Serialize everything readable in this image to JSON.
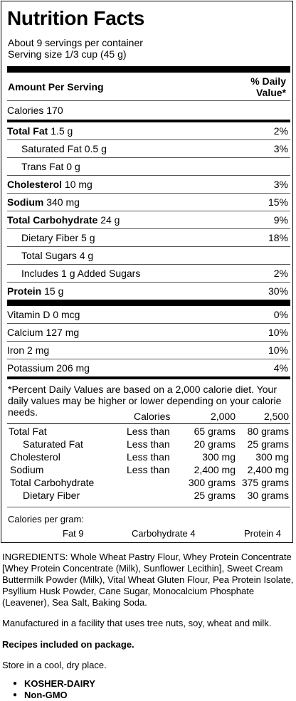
{
  "label": {
    "title": "Nutrition Facts",
    "servings": "About 9 servings per container",
    "serving_size": "Serving size 1/3 cup (45 g)",
    "amount_header": "Amount Per Serving",
    "dv_header_1": "% Daily",
    "dv_header_2": "Value*",
    "calories": "Calories 170",
    "rows": [
      {
        "name": "Total Fat",
        "amount": "1.5 g",
        "dv": "2%"
      },
      {
        "name": "Saturated Fat 0.5 g",
        "amount": "",
        "dv": "3%"
      },
      {
        "name": "Trans Fat 0 g",
        "amount": "",
        "dv": ""
      },
      {
        "name": "Cholesterol",
        "amount": "10 mg",
        "dv": "3%"
      },
      {
        "name": "Sodium",
        "amount": "340 mg",
        "dv": "15%"
      },
      {
        "name": "Total Carbohydrate",
        "amount": "24 g",
        "dv": "9%"
      },
      {
        "name": "Dietary Fiber 5 g",
        "amount": "",
        "dv": "18%"
      },
      {
        "name": "Total Sugars 4 g",
        "amount": "",
        "dv": ""
      },
      {
        "name": "Includes 1 g Added Sugars",
        "amount": "",
        "dv": "2%"
      },
      {
        "name": "Protein",
        "amount": "15 g",
        "dv": "30%"
      }
    ],
    "micros": [
      {
        "name": "Vitamin D 0 mcg",
        "dv": "0%"
      },
      {
        "name": "Calcium 127 mg",
        "dv": "10%"
      },
      {
        "name": "Iron 2 mg",
        "dv": "10%"
      },
      {
        "name": "Potassium 206 mg",
        "dv": "4%"
      }
    ],
    "footnote": "*Percent Daily Values are based on a 2,000 calorie diet. Your daily values may be higher or lower depending on your calorie needs.",
    "guide": {
      "head": [
        "Calories",
        "2,000",
        "2,500"
      ],
      "rows": [
        [
          "Total Fat",
          "Less than",
          "65 grams",
          "80 grams"
        ],
        [
          "Saturated Fat",
          "Less than",
          "20 grams",
          "25 grams"
        ],
        [
          "Cholesterol",
          "Less than",
          "300 mg",
          "300 mg"
        ],
        [
          "Sodium",
          "Less than",
          "2,400 mg",
          "2,400 mg"
        ],
        [
          "Total Carbohydrate",
          "",
          "300 grams",
          "375 grams"
        ],
        [
          "Dietary Fiber",
          "",
          "25 grams",
          "30 grams"
        ]
      ]
    },
    "cal_per_gram": "Calories per gram:",
    "fat": "Fat 9",
    "carb": "Carbohydrate 4",
    "protein": "Protein 4"
  },
  "info": {
    "ingredients": "INGREDIENTS: Whole Wheat Pastry Flour, Whey Protein Concentrate [Whey Protein Concentrate (Milk), Sunflower Lecithin], Sweet Cream Buttermilk Powder (Milk), Vital Wheat Gluten Flour, Pea Protein Isolate, Psyllium Husk Powder, Cane Sugar, Monocalcium Phosphate (Leavener), Sea Salt, Baking Soda.",
    "facility": "Manufactured in a facility that uses tree nuts, soy, wheat and milk.",
    "recipes": "Recipes included on package.",
    "storage": "Store in a cool, dry place.",
    "certs": [
      "KOSHER-DAIRY",
      "Non-GMO"
    ]
  }
}
